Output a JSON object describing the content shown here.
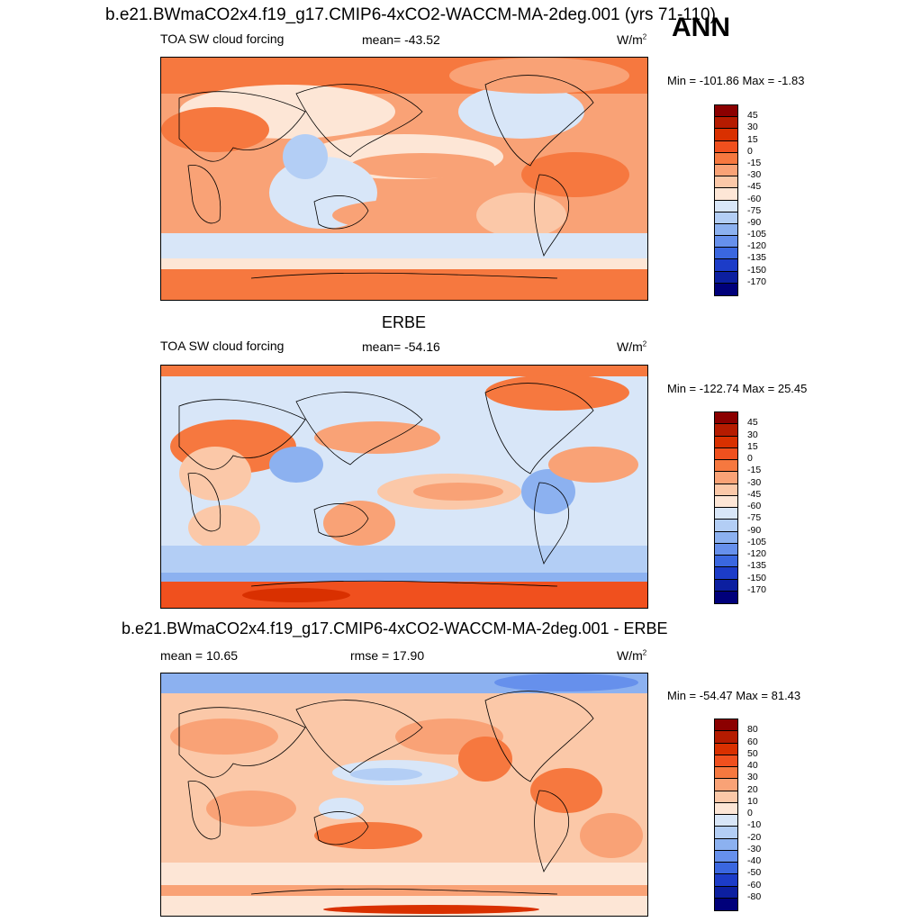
{
  "chart_data": [
    {
      "type": "heatmap",
      "title": "b.e21.BWmaCO2x4.f19_g17.CMIP6-4xCO2-WACCM-MA-2deg.001 (yrs 71-110)",
      "season": "ANN",
      "variable": "TOA SW cloud forcing",
      "mean_label": "mean= -43.52",
      "units": "W/m",
      "units_sup": "2",
      "minmax": "Min = -101.86 Max =  -1.83",
      "colorbar_levels": [
        "45",
        "30",
        "15",
        "0",
        "-15",
        "-30",
        "-45",
        "-60",
        "-75",
        "-90",
        "-105",
        "-120",
        "-135",
        "-150",
        "-170"
      ],
      "colorbar_colors": [
        "#8b0000",
        "#b51b00",
        "#d93000",
        "#f0501e",
        "#f6783f",
        "#f9a276",
        "#fbc8a8",
        "#fde6d6",
        "#d8e6f8",
        "#b3cef5",
        "#8cb1f0",
        "#6690ec",
        "#3a67e0",
        "#1c3cc8",
        "#0c1fa0",
        "#00007a"
      ]
    },
    {
      "type": "heatmap",
      "title": "ERBE",
      "variable": "TOA SW cloud forcing",
      "mean_label": "mean= -54.16",
      "units": "W/m",
      "units_sup": "2",
      "minmax": "Min = -122.74 Max =  25.45",
      "colorbar_levels": [
        "45",
        "30",
        "15",
        "0",
        "-15",
        "-30",
        "-45",
        "-60",
        "-75",
        "-90",
        "-105",
        "-120",
        "-135",
        "-150",
        "-170"
      ]
    },
    {
      "type": "heatmap",
      "title": "b.e21.BWmaCO2x4.f19_g17.CMIP6-4xCO2-WACCM-MA-2deg.001 - ERBE",
      "mean_label": "mean =  10.65",
      "rmse_label": "rmse =  17.90",
      "units": "W/m",
      "units_sup": "2",
      "minmax": "Min = -54.47 Max =  81.43",
      "colorbar_levels": [
        "80",
        "60",
        "50",
        "40",
        "30",
        "20",
        "10",
        "0",
        "-10",
        "-20",
        "-30",
        "-40",
        "-50",
        "-60",
        "-80"
      ]
    }
  ]
}
